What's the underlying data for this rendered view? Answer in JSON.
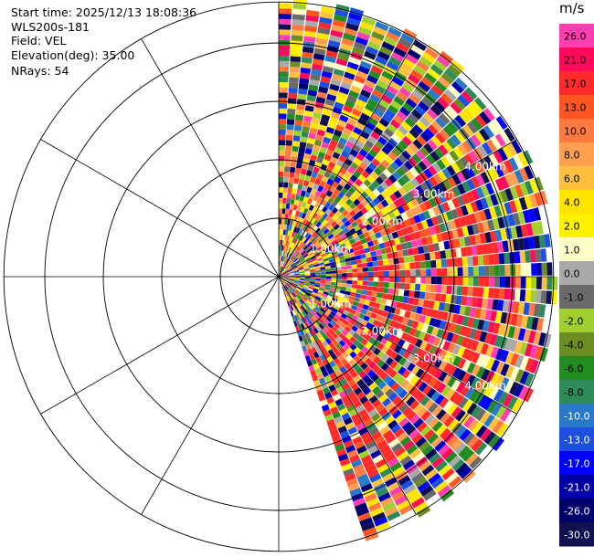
{
  "info": {
    "start_time": "Start time: 2025/12/13 18:08:36",
    "instrument": "WLS200s-181",
    "field": "Field: VEL",
    "elevation": "Elevation(deg): 35.00",
    "nrays": "NRays: 54"
  },
  "colorbar": {
    "unit": "m/s",
    "levels": [
      {
        "label": "26.0",
        "color": "#ff3fb0"
      },
      {
        "label": "21.0",
        "color": "#ff0a5a"
      },
      {
        "label": "17.0",
        "color": "#ff2a2a"
      },
      {
        "label": "13.0",
        "color": "#ff5520"
      },
      {
        "label": "10.0",
        "color": "#ff7a40"
      },
      {
        "label": "8.0",
        "color": "#ff9f50"
      },
      {
        "label": "6.0",
        "color": "#ffc040"
      },
      {
        "label": "4.0",
        "color": "#ffe400"
      },
      {
        "label": "2.0",
        "color": "#fff200"
      },
      {
        "label": "1.0",
        "color": "#ffffc8"
      },
      {
        "label": "0.0",
        "color": "#a9a9a9"
      },
      {
        "label": "-1.0",
        "color": "#6a6a6a"
      },
      {
        "label": "-2.0",
        "color": "#a0d030"
      },
      {
        "label": "-4.0",
        "color": "#6b8e23"
      },
      {
        "label": "-6.0",
        "color": "#228b22"
      },
      {
        "label": "-8.0",
        "color": "#2e8b57"
      },
      {
        "label": "-10.0",
        "color": "#2a78c8"
      },
      {
        "label": "-13.0",
        "color": "#1e50e0"
      },
      {
        "label": "-17.0",
        "color": "#0000ff"
      },
      {
        "label": "-21.0",
        "color": "#0000a8"
      },
      {
        "label": "-26.0",
        "color": "#00006a"
      },
      {
        "label": "-30.0",
        "color": "#101050"
      }
    ]
  },
  "chart_data": {
    "type": "heatmap",
    "projection": "polar-ppi",
    "field": "VEL",
    "units": "m/s",
    "range_rings_km": [
      1,
      2,
      3,
      4
    ],
    "range_ring_labels": [
      "1.00km",
      "2.00km",
      "3.00km",
      "4.00km"
    ],
    "max_range_km": 4.7,
    "azimuth_coverage_deg": [
      0,
      160
    ],
    "azimuth_step_deg": 3,
    "nrays": 54,
    "spoke_step_deg": 30,
    "value_range": [
      -30,
      26
    ],
    "grid": true
  }
}
